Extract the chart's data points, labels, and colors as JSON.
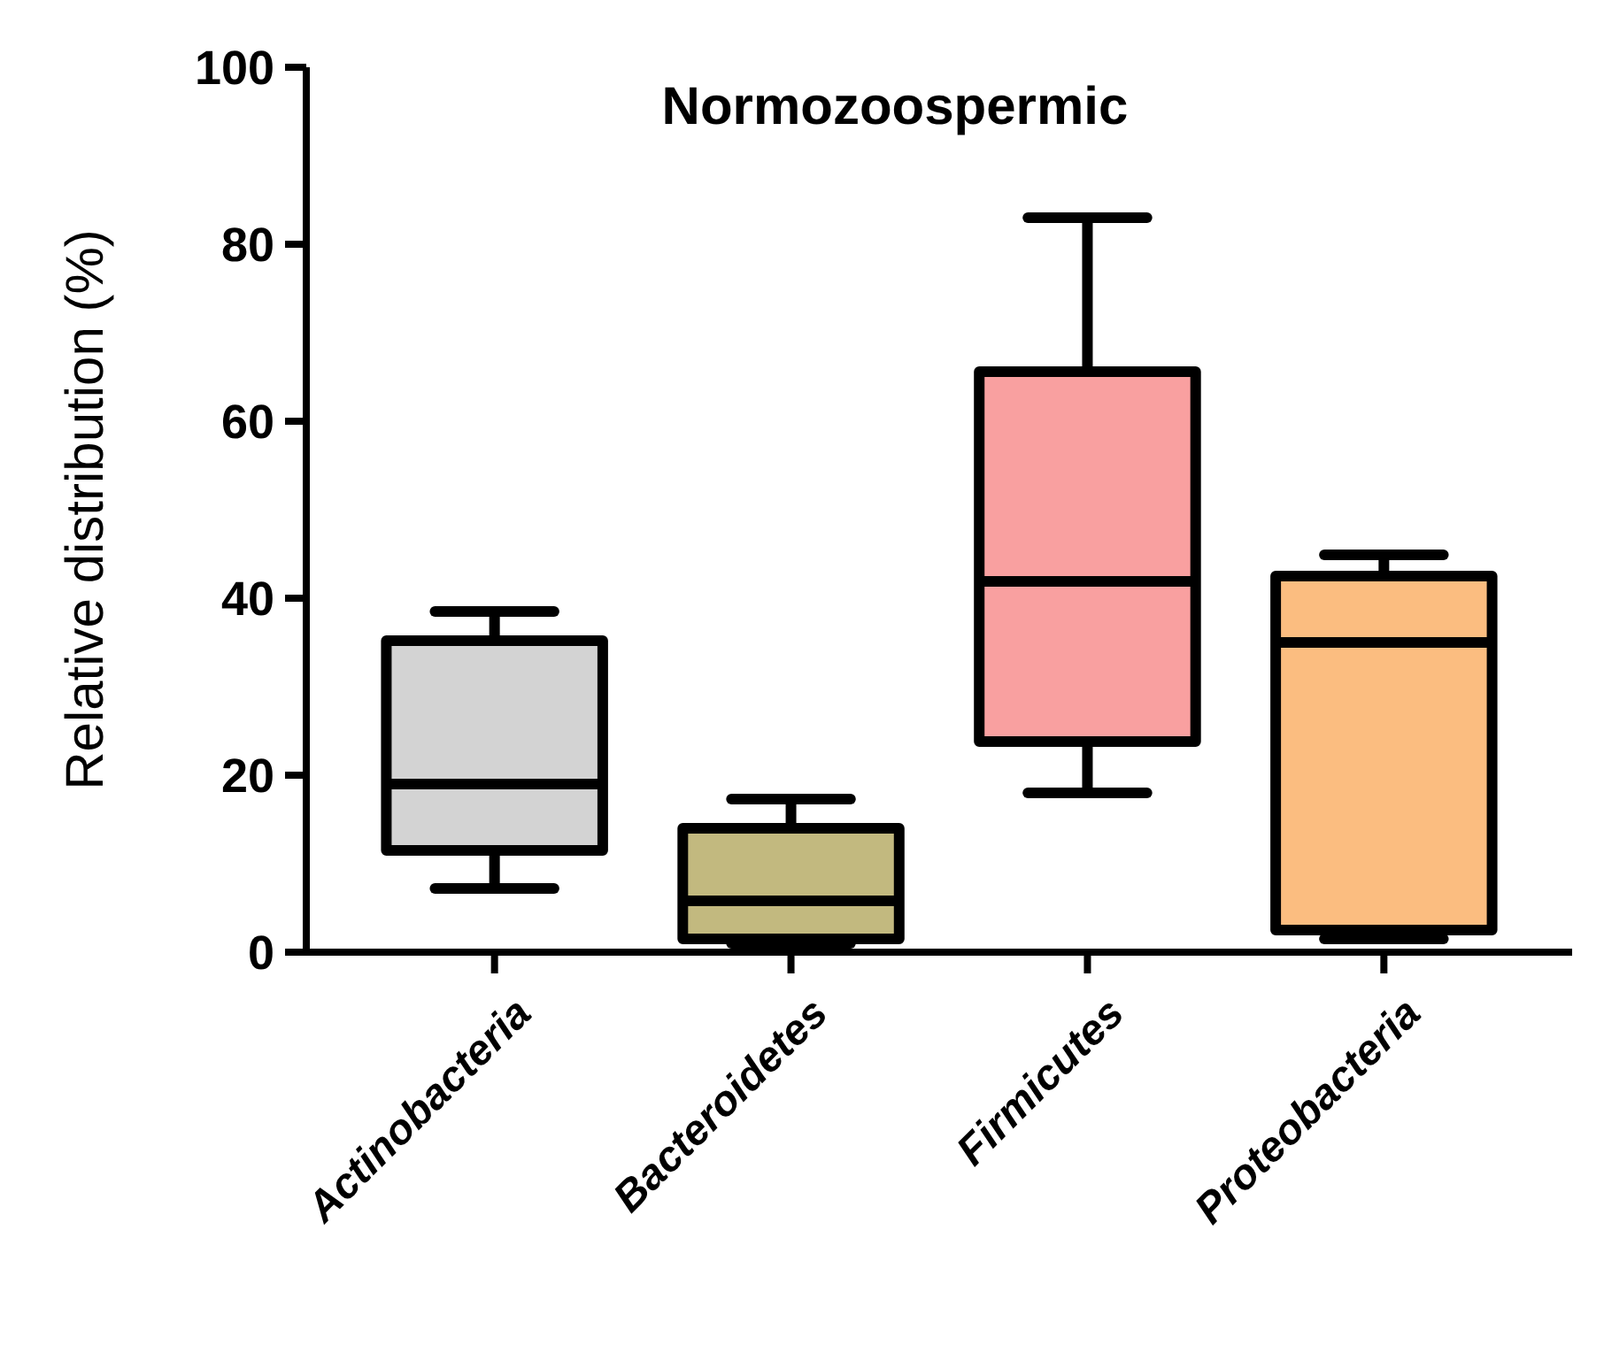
{
  "chart_data": {
    "type": "box",
    "title": "Normozoospermic",
    "ylabel": "Relative distribution (%)",
    "categories": [
      "Actinobacteria",
      "Bacteroidetes",
      "Firmicutes",
      "Proteobacteria"
    ],
    "colors": [
      "#d3d3d3",
      "#c2b97f",
      "#f9a0a0",
      "#fbbd80"
    ],
    "boxes": [
      {
        "low": 7.2,
        "q1": 11.5,
        "median": 19,
        "q3": 35.2,
        "high": 38.5
      },
      {
        "low": 1,
        "q1": 1.5,
        "median": 5.8,
        "q3": 14,
        "high": 17.3
      },
      {
        "low": 18,
        "q1": 23.8,
        "median": 41.9,
        "q3": 65.6,
        "high": 83
      },
      {
        "low": 1.5,
        "q1": 2.5,
        "median": 35,
        "q3": 42.5,
        "high": 44.9
      }
    ],
    "ylim": [
      0,
      100
    ],
    "yticks": [
      0,
      20,
      40,
      60,
      80,
      100
    ],
    "grid": false
  }
}
